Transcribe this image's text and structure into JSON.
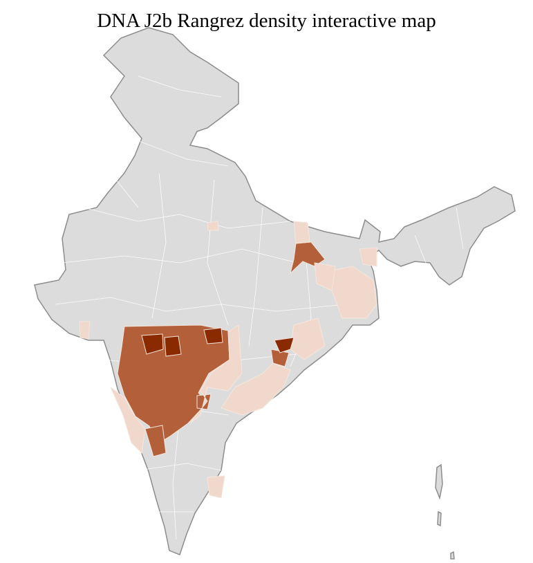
{
  "title": "DNA J2b Rangrez density interactive map",
  "colors": {
    "no_data": "#dcdcdc",
    "low": "#f0d9cc",
    "medium": "#b35f3a",
    "high": "#8a2a00",
    "border": "#8c8c8c"
  },
  "regions": [
    {
      "level": "high"
    },
    {
      "level": "high"
    },
    {
      "level": "high"
    },
    {
      "level": "high"
    },
    {
      "level": "medium"
    },
    {
      "level": "medium"
    },
    {
      "level": "medium"
    },
    {
      "level": "medium"
    },
    {
      "level": "medium"
    },
    {
      "level": "low"
    },
    {
      "level": "low"
    },
    {
      "level": "low"
    },
    {
      "level": "low"
    },
    {
      "level": "low"
    },
    {
      "level": "low"
    },
    {
      "level": "low"
    },
    {
      "level": "low"
    },
    {
      "level": "low"
    },
    {
      "level": "low"
    },
    {
      "level": "low"
    }
  ]
}
